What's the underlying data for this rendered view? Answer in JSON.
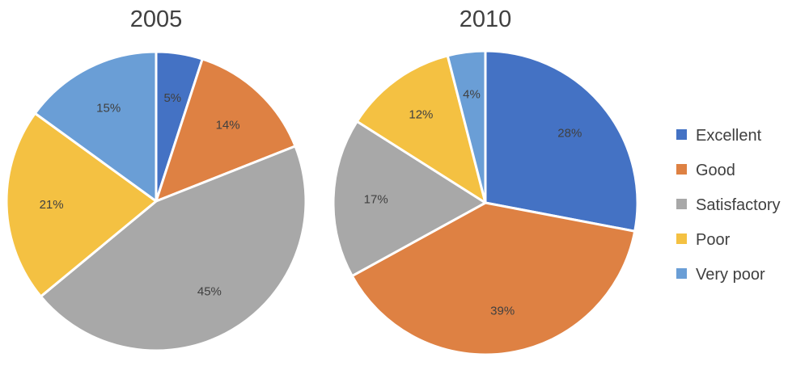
{
  "chart_data": [
    {
      "type": "pie",
      "title": "2005",
      "categories": [
        "Excellent",
        "Good",
        "Satisfactory",
        "Poor",
        "Very poor"
      ],
      "values": [
        5,
        14,
        45,
        21,
        15
      ],
      "value_labels": [
        "5%",
        "14%",
        "45%",
        "21%",
        "15%"
      ],
      "legend": "none"
    },
    {
      "type": "pie",
      "title": "2010",
      "categories": [
        "Excellent",
        "Good",
        "Satisfactory",
        "Poor",
        "Very poor"
      ],
      "values": [
        28,
        39,
        17,
        12,
        4
      ],
      "value_labels": [
        "28%",
        "39%",
        "17%",
        "12%",
        "4%"
      ],
      "legend": "right"
    }
  ],
  "legend": {
    "items": [
      {
        "label": "Excellent",
        "color": "#4472C4"
      },
      {
        "label": "Good",
        "color": "#ED7D31"
      },
      {
        "label": "Satisfactory",
        "color": "#A5A5A5"
      },
      {
        "label": "Poor",
        "color": "#FFC000"
      },
      {
        "label": "Very poor",
        "color": "#5B9BD5"
      }
    ]
  },
  "colors": {
    "Excellent": "#4472C4",
    "Good": "#DE8143",
    "Satisfactory": "#A8A8A8",
    "Poor": "#F4C142",
    "Very poor": "#6A9ED6"
  }
}
